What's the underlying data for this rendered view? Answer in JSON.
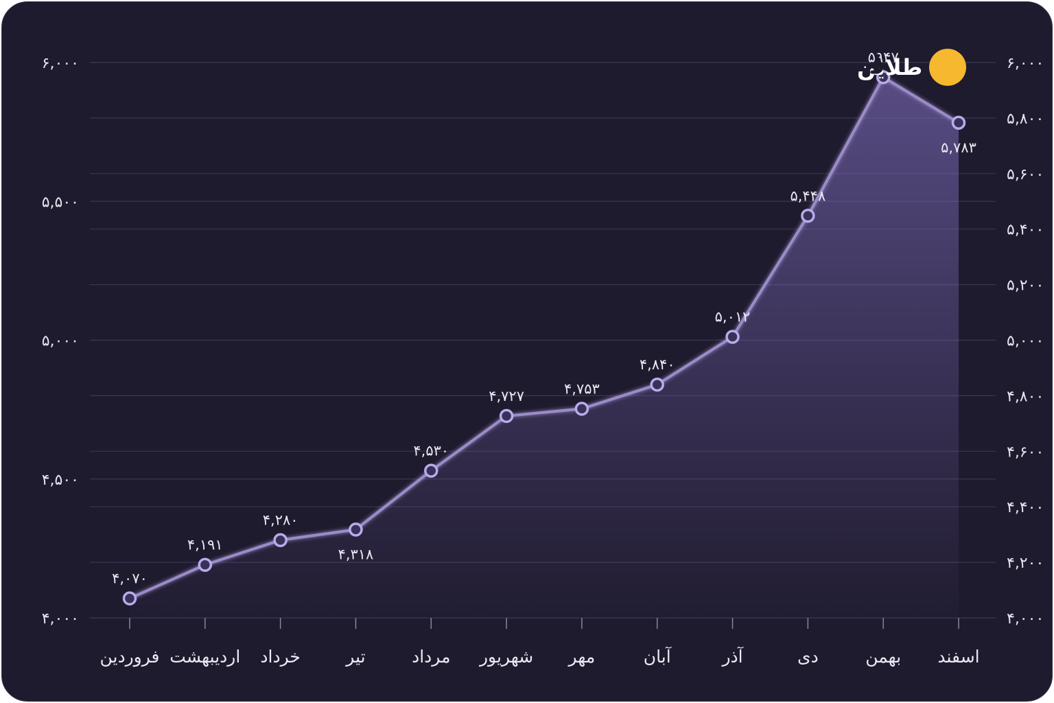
{
  "brand": {
    "name": "طلاین",
    "icon": "logo-badge-icon",
    "accent": "#f5b82e"
  },
  "colors": {
    "background": "#1f1b2e",
    "line": "#9a8cc8",
    "grid": "#3b3652",
    "area": "#6f5fa8"
  },
  "chart_data": {
    "type": "area",
    "title": "",
    "xlabel": "",
    "ylabel": "",
    "categories": [
      "فروردین",
      "اردیبهشت",
      "خرداد",
      "تیر",
      "مرداد",
      "شهریور",
      "مهر",
      "آبان",
      "آذر",
      "دی",
      "بهمن",
      "اسفند"
    ],
    "values": [
      4070,
      4191,
      4280,
      4318,
      4530,
      4727,
      4753,
      4840,
      5012,
      5448,
      5947,
      5783
    ],
    "data_labels": [
      "۴,۰۷۰",
      "۴,۱۹۱",
      "۴,۲۸۰",
      "۴,۳۱۸",
      "۴,۵۳۰",
      "۴,۷۲۷",
      "۴,۷۵۳",
      "۴,۸۴۰",
      "۵,۰۱۲",
      "۵,۴۴۸",
      "۵۹۴۷",
      "۵,۷۸۳"
    ],
    "label_side": [
      "above",
      "above",
      "above",
      "below",
      "above",
      "above",
      "above",
      "above",
      "above",
      "above",
      "above",
      "below"
    ],
    "ylim": [
      4000,
      6000
    ],
    "y_ticks_left": [
      {
        "value": 4000,
        "label": "۴,۰۰۰"
      },
      {
        "value": 4500,
        "label": "۴,۵۰۰"
      },
      {
        "value": 5000,
        "label": "۵,۰۰۰"
      },
      {
        "value": 5500,
        "label": "۵,۵۰۰"
      },
      {
        "value": 6000,
        "label": "۶,۰۰۰"
      }
    ],
    "y_ticks_right": [
      {
        "value": 4000,
        "label": "۴,۰۰۰"
      },
      {
        "value": 4200,
        "label": "۴,۲۰۰"
      },
      {
        "value": 4400,
        "label": "۴,۴۰۰"
      },
      {
        "value": 4600,
        "label": "۴,۶۰۰"
      },
      {
        "value": 4800,
        "label": "۴,۸۰۰"
      },
      {
        "value": 5000,
        "label": "۵,۰۰۰"
      },
      {
        "value": 5200,
        "label": "۵,۲۰۰"
      },
      {
        "value": 5400,
        "label": "۵,۴۰۰"
      },
      {
        "value": 5600,
        "label": "۵,۶۰۰"
      },
      {
        "value": 5800,
        "label": "۵,۸۰۰"
      },
      {
        "value": 6000,
        "label": "۶,۰۰۰"
      }
    ],
    "grid": true,
    "legend": "none"
  }
}
